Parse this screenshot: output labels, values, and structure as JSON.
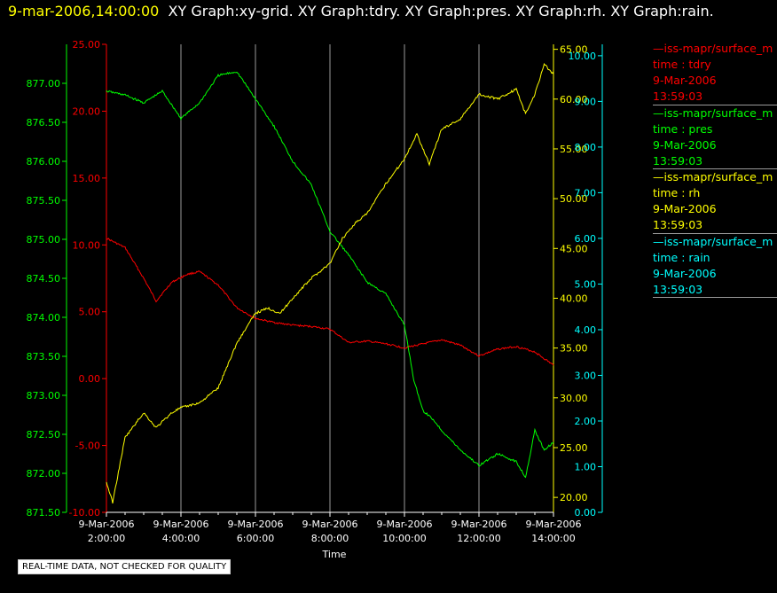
{
  "header": {
    "timestamp": "9-mar-2006,14:00:00",
    "graph_titles": "XY Graph:xy-grid.  XY Graph:tdry.  XY Graph:pres.  XY Graph:rh.  XY Graph:rain."
  },
  "legend": [
    {
      "source": "—iss-mapr/surface_m",
      "var": "time : tdry",
      "date": "9-Mar-2006",
      "time": "13:59:03",
      "color": "#ff0000"
    },
    {
      "source": "—iss-mapr/surface_m",
      "var": "time : pres",
      "date": "9-Mar-2006",
      "time": "13:59:03",
      "color": "#00ff00"
    },
    {
      "source": "—iss-mapr/surface_m",
      "var": "time : rh",
      "date": "9-Mar-2006",
      "time": "13:59:03",
      "color": "#ffff00"
    },
    {
      "source": "—iss-mapr/surface_m",
      "var": "time : rain",
      "date": "9-Mar-2006",
      "time": "13:59:03",
      "color": "#00ffff"
    }
  ],
  "disclaimer": "REAL-TIME DATA, NOT CHECKED FOR QUALITY",
  "chart_data": {
    "type": "line",
    "xlabel": "Time",
    "x_ticks": [
      {
        "date": "9-Mar-2006",
        "time": "2:00:00"
      },
      {
        "date": "9-Mar-2006",
        "time": "4:00:00"
      },
      {
        "date": "9-Mar-2006",
        "time": "6:00:00"
      },
      {
        "date": "9-Mar-2006",
        "time": "8:00:00"
      },
      {
        "date": "9-Mar-2006",
        "time": "10:00:00"
      },
      {
        "date": "9-Mar-2006",
        "time": "12:00:00"
      },
      {
        "date": "9-Mar-2006",
        "time": "14:00:00"
      }
    ],
    "xlim": [
      "9-Mar-2006 2:00:00",
      "9-Mar-2006 14:00:00"
    ],
    "grid": "vertical lines at each x tick",
    "axes": {
      "pres": {
        "color": "#00ff00",
        "side": "left-outer",
        "ylim": [
          871.5,
          877.5
        ],
        "ticks": [
          "871.50",
          "872.00",
          "872.50",
          "873.00",
          "873.50",
          "874.00",
          "874.50",
          "875.00",
          "875.50",
          "876.00",
          "876.50",
          "877.00"
        ]
      },
      "tdry": {
        "color": "#ff0000",
        "side": "left-inner",
        "ylim": [
          -10,
          25
        ],
        "ticks": [
          "-10.00",
          "-5.00",
          "0.00",
          "5.00",
          "10.00",
          "15.00",
          "20.00",
          "25.00"
        ]
      },
      "rh": {
        "color": "#ffff00",
        "side": "right-inner",
        "ylim": [
          18.5,
          65.5
        ],
        "ticks": [
          "20.00",
          "25.00",
          "30.00",
          "35.00",
          "40.00",
          "45.00",
          "50.00",
          "55.00",
          "60.00",
          "65.00"
        ]
      },
      "rain": {
        "color": "#00ffff",
        "side": "right-outer",
        "ylim": [
          0,
          10.25
        ],
        "ticks": [
          "0.00",
          "1.00",
          "2.00",
          "3.00",
          "4.00",
          "5.00",
          "6.00",
          "7.00",
          "8.00",
          "9.00",
          "10.00"
        ]
      }
    },
    "series": [
      {
        "name": "tdry",
        "axis": "tdry",
        "color": "#ff0000",
        "x": [
          "2:00",
          "2:30",
          "3:00",
          "3:20",
          "3:45",
          "4:10",
          "4:30",
          "5:00",
          "5:30",
          "6:00",
          "6:30",
          "7:00",
          "7:30",
          "8:00",
          "8:30",
          "9:00",
          "9:30",
          "10:00",
          "10:30",
          "11:00",
          "11:30",
          "12:00",
          "12:30",
          "13:00",
          "13:30",
          "14:00"
        ],
        "y": [
          10.5,
          9.8,
          7.5,
          5.8,
          7.2,
          7.8,
          8.0,
          7.0,
          5.3,
          4.5,
          4.2,
          4.0,
          3.9,
          3.7,
          2.7,
          2.8,
          2.6,
          2.3,
          2.6,
          2.9,
          2.5,
          1.7,
          2.2,
          2.4,
          2.0,
          1.0
        ]
      },
      {
        "name": "pres",
        "axis": "pres",
        "color": "#00ff00",
        "x": [
          "2:00",
          "2:30",
          "3:00",
          "3:30",
          "4:00",
          "4:30",
          "5:00",
          "5:30",
          "6:00",
          "6:30",
          "7:00",
          "7:30",
          "8:00",
          "8:30",
          "9:00",
          "9:30",
          "10:00",
          "10:15",
          "10:30",
          "10:45",
          "11:00",
          "11:30",
          "12:00",
          "12:30",
          "13:00",
          "13:15",
          "13:30",
          "13:45",
          "14:00"
        ],
        "y": [
          876.9,
          876.85,
          876.75,
          876.9,
          876.55,
          876.75,
          877.1,
          877.15,
          876.8,
          876.45,
          876.0,
          875.7,
          875.1,
          874.8,
          874.45,
          874.3,
          873.9,
          873.2,
          872.8,
          872.7,
          872.55,
          872.3,
          872.1,
          872.25,
          872.15,
          871.95,
          872.55,
          872.3,
          872.4
        ]
      },
      {
        "name": "rh",
        "axis": "rh",
        "color": "#ffff00",
        "x": [
          "2:00",
          "2:10",
          "2:30",
          "3:00",
          "3:20",
          "3:45",
          "4:00",
          "4:30",
          "5:00",
          "5:30",
          "6:00",
          "6:20",
          "6:40",
          "7:00",
          "7:30",
          "8:00",
          "8:20",
          "8:40",
          "9:00",
          "9:30",
          "10:00",
          "10:20",
          "10:40",
          "11:00",
          "11:30",
          "12:00",
          "12:30",
          "13:00",
          "13:15",
          "13:30",
          "13:45",
          "14:00"
        ],
        "y": [
          21.5,
          19.5,
          26.0,
          28.5,
          27.0,
          28.5,
          29.0,
          29.5,
          31.0,
          35.5,
          38.5,
          39.0,
          38.5,
          40.0,
          42.0,
          43.5,
          46.0,
          47.5,
          48.5,
          51.5,
          54.0,
          56.5,
          53.5,
          57.0,
          58.0,
          60.5,
          60.0,
          61.0,
          58.5,
          60.5,
          63.5,
          62.5
        ]
      },
      {
        "name": "rain",
        "axis": "rain",
        "color": "#00ffff",
        "x": [
          "2:00",
          "14:00"
        ],
        "y": [
          0.0,
          0.0
        ]
      }
    ]
  }
}
